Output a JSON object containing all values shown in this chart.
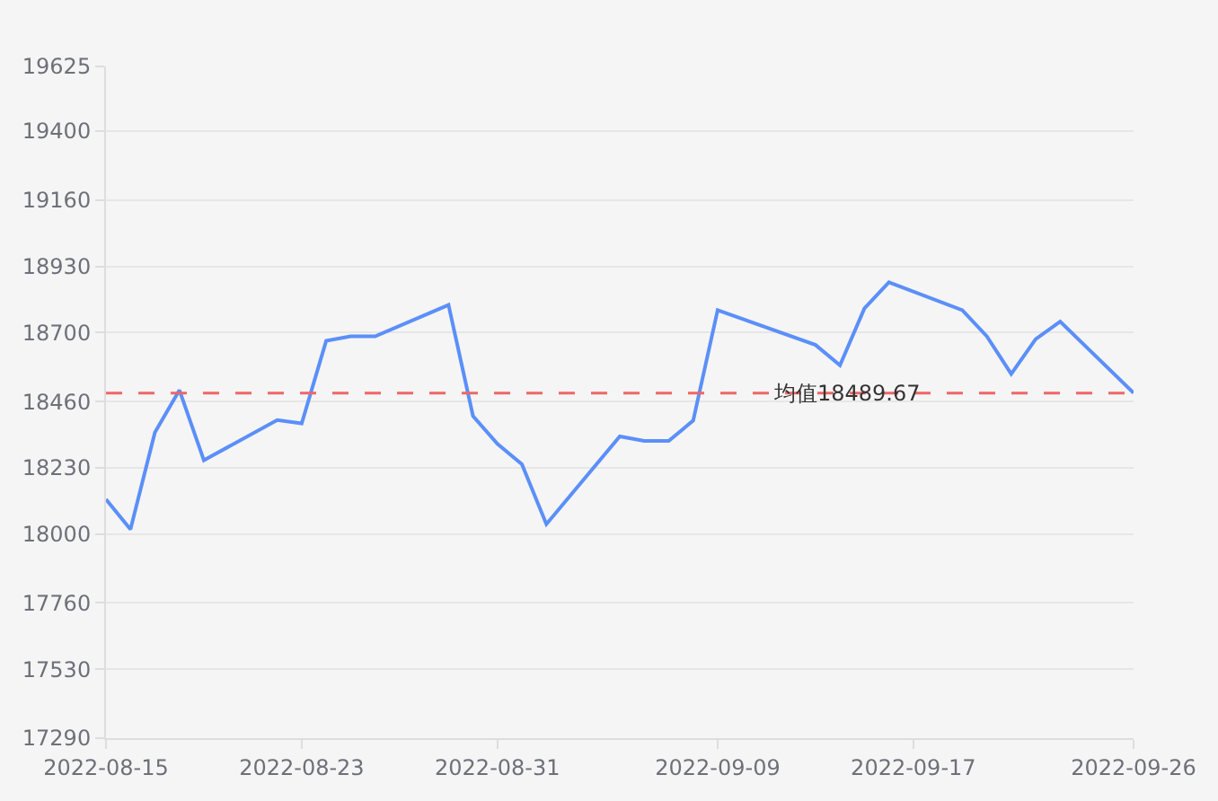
{
  "chart_data": {
    "type": "line",
    "x": [
      "2022-08-15",
      "2022-08-16",
      "2022-08-17",
      "2022-08-18",
      "2022-08-19",
      "2022-08-22",
      "2022-08-23",
      "2022-08-24",
      "2022-08-25",
      "2022-08-26",
      "2022-08-29",
      "2022-08-30",
      "2022-08-31",
      "2022-09-01",
      "2022-09-02",
      "2022-09-05",
      "2022-09-06",
      "2022-09-07",
      "2022-09-08",
      "2022-09-09",
      "2022-09-13",
      "2022-09-14",
      "2022-09-15",
      "2022-09-16",
      "2022-09-19",
      "2022-09-20",
      "2022-09-21",
      "2022-09-22",
      "2022-09-23",
      "2022-09-26"
    ],
    "series": [
      {
        "color": "#5b8ff9",
        "values": [
          18120,
          18016,
          18353,
          18500,
          18256,
          18396,
          18384,
          18671,
          18687,
          18687,
          18796,
          18410,
          18313,
          18242,
          18034,
          18339,
          18323,
          18323,
          18394,
          18778,
          18657,
          18586,
          18784,
          18875,
          18778,
          18687,
          18556,
          18677,
          18738,
          18490
        ]
      }
    ],
    "xlim": [
      "2022-08-15",
      "2022-09-26"
    ],
    "xticks": [
      "2022-08-15",
      "2022-08-23",
      "2022-08-31",
      "2022-09-09",
      "2022-09-17",
      "2022-09-26"
    ],
    "ylim": [
      17290,
      19625
    ],
    "yticks": [
      17290,
      17530,
      17760,
      18000,
      18230,
      18460,
      18700,
      18930,
      19160,
      19400,
      19625
    ],
    "grid": "y",
    "marker": "none",
    "line_style": "solid",
    "ref_lines": [
      {
        "axis": "y",
        "value": 18489.67,
        "label": "均值18489.67",
        "color": "#ee6666",
        "line_style": "dashed"
      }
    ]
  }
}
